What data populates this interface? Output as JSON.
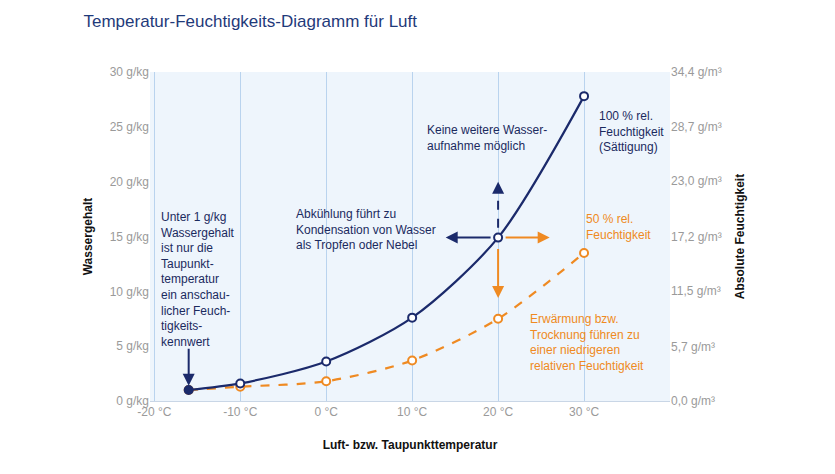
{
  "chart_data": {
    "type": "line",
    "title": "Temperatur-Feuchtigkeits-Diagramm für Luft",
    "x_label": "Luft- bzw. Taupunkttemperatur",
    "y_label": "Wassergehalt",
    "y2_label": "Absolute Feuchtigkeit",
    "x": [
      -16,
      -10,
      0,
      10,
      20,
      30
    ],
    "xlim": [
      -20.5,
      40
    ],
    "xticks": [
      {
        "value": -20,
        "label": "-20 °C"
      },
      {
        "value": -10,
        "label": "-10 °C"
      },
      {
        "value": 0,
        "label": "0 °C"
      },
      {
        "value": 10,
        "label": "10 °C"
      },
      {
        "value": 20,
        "label": "20 °C"
      },
      {
        "value": 30,
        "label": "30 °C"
      }
    ],
    "ylim": [
      0,
      30
    ],
    "yticks": [
      {
        "value": 0,
        "label": "0 g/kg"
      },
      {
        "value": 5,
        "label": "5 g/kg"
      },
      {
        "value": 10,
        "label": "10 g/kg"
      },
      {
        "value": 15,
        "label": "15 g/kg"
      },
      {
        "value": 20,
        "label": "20 g/kg"
      },
      {
        "value": 25,
        "label": "25 g/kg"
      },
      {
        "value": 30,
        "label": "30 g/kg"
      }
    ],
    "y2lim": [
      0,
      34.4
    ],
    "y2ticks": [
      {
        "value": 0,
        "label": "0,0 g/m³"
      },
      {
        "value": 5.7,
        "label": "5,7 g/m³"
      },
      {
        "value": 11.5,
        "label": "11,5 g/m³"
      },
      {
        "value": 17.2,
        "label": "17,2 g/m³"
      },
      {
        "value": 23.0,
        "label": "23,0 g/m³"
      },
      {
        "value": 28.7,
        "label": "28,7 g/m³"
      },
      {
        "value": 34.4,
        "label": "34,4 g/m³"
      }
    ],
    "grid": "x",
    "series": [
      {
        "name": "100 % rel.\nFeuchtigkeit\n(Sättigung)",
        "color": "#1b2a6b",
        "values": [
          1.0,
          1.6,
          3.6,
          7.6,
          14.9,
          27.8
        ],
        "line_style": "solid",
        "marker": "circle"
      },
      {
        "name": "50 % rel.\nFeuchtigkeit",
        "color": "#ef8a22",
        "values": [
          1.0,
          1.3,
          1.8,
          3.7,
          7.5,
          13.5
        ],
        "line_style": "dash",
        "marker": "circle"
      }
    ],
    "annotations": [
      "Unter 1 g/kg\nWassergehalt\nist nur die\nTaupunkt-\ntemperatur\nein anschau-\nlicher Feuch-\ntigkeits-\nkennwert",
      "Keine weitere Wasser-\naufnahme möglich",
      "Abkühlung führt zu\nKondensation von Wasser\nals Tropfen oder Nebel",
      "Erwärmung bzw.\nTrocknung führen zu\neiner niedrigeren\nrelativen Feuchtigkeit"
    ]
  }
}
